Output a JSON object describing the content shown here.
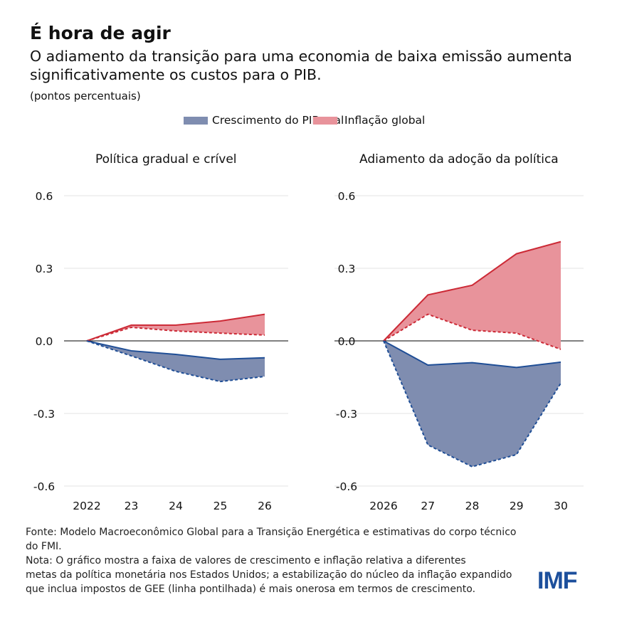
{
  "title": "É hora de agir",
  "subtitle": "O adiamento da transição para uma economia de baixa emissão aumenta significativamente os custos para o PIB.",
  "units": "(pontos percentuais)",
  "legend": [
    {
      "label": "Crescimento do PIB real",
      "color": "#7f8db0"
    },
    {
      "label": "Inflação global",
      "color": "#e8939b"
    }
  ],
  "colors": {
    "gdp_fill": "#7f8db0",
    "gdp_line": "#1f4e96",
    "infl_fill": "#e8939b",
    "infl_line": "#cc2a36"
  },
  "chart_data": [
    {
      "type": "area",
      "title": "Política gradual e crível",
      "categories": [
        "2022",
        "23",
        "24",
        "25",
        "26"
      ],
      "yticks": [
        "0.6",
        "0.3",
        "0.0",
        "-0.3",
        "-0.6"
      ],
      "ylim": [
        -0.6,
        0.6
      ],
      "grid": true,
      "series": [
        {
          "name": "Inflação global",
          "upper": [
            0,
            0.065,
            0.065,
            0.082,
            0.11
          ],
          "lower": [
            0,
            0.056,
            0.041,
            0.032,
            0.024
          ]
        },
        {
          "name": "Crescimento do PIB real",
          "upper": [
            0,
            -0.041,
            -0.056,
            -0.076,
            -0.07
          ],
          "lower": [
            0,
            -0.062,
            -0.126,
            -0.168,
            -0.147
          ]
        }
      ]
    },
    {
      "type": "area",
      "title": "Adiamento da adoção da política",
      "categories": [
        "2026",
        "27",
        "28",
        "29",
        "30"
      ],
      "yticks": [
        "0.6",
        "0.3",
        "0.0",
        "-0.3",
        "-0.6"
      ],
      "ylim": [
        -0.6,
        0.6
      ],
      "grid": true,
      "series": [
        {
          "name": "Inflação global",
          "upper": [
            0,
            0.19,
            0.23,
            0.36,
            0.41
          ],
          "lower": [
            0,
            0.11,
            0.044,
            0.032,
            -0.035
          ]
        },
        {
          "name": "Crescimento do PIB real",
          "upper": [
            0,
            -0.1,
            -0.09,
            -0.11,
            -0.088
          ],
          "lower": [
            0,
            -0.43,
            -0.52,
            -0.47,
            -0.175
          ]
        }
      ]
    }
  ],
  "footer": {
    "source": "Fonte: Modelo Macroeconômico Global para a Transição Energética e estimativas do corpo técnico\ndo FMI.\nNota: O gráfico mostra a faixa de valores de crescimento e inflação relativa a diferentes\nmetas da política monetária nos Estados Unidos; a estabilização do núcleo da inflação expandido\nque inclua impostos de GEE (linha pontilhada) é mais onerosa em termos de crescimento.",
    "logo": "IMF"
  }
}
